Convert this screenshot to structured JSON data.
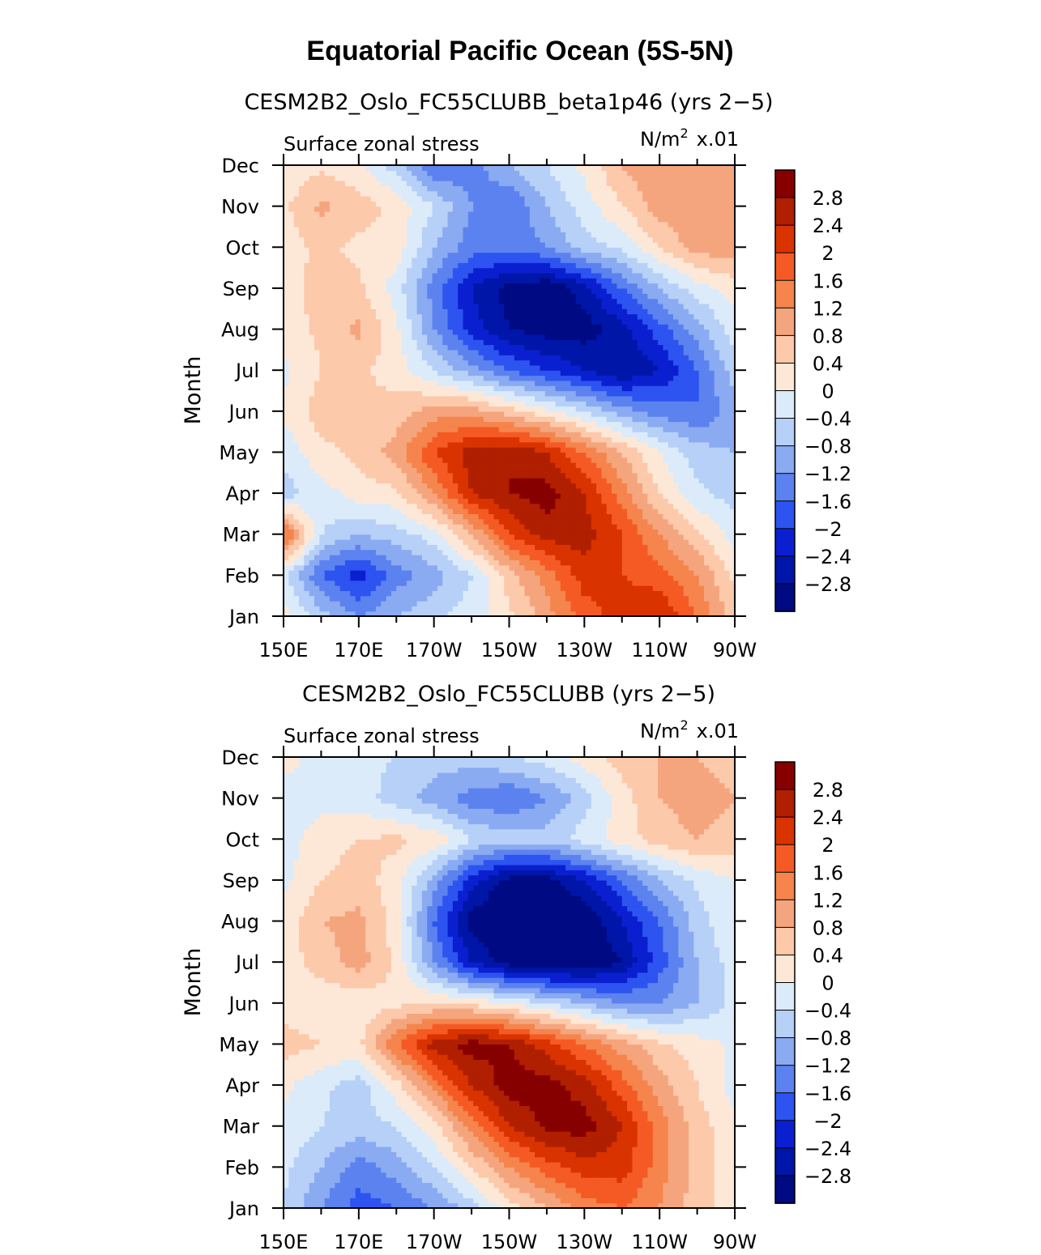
{
  "figure": {
    "title": "Equatorial Pacific Ocean (5S-5N)"
  },
  "colorbar": {
    "labels": [
      "2.8",
      "2.4",
      "2",
      "1.6",
      "1.2",
      "0.8",
      "0.4",
      "0",
      "−0.4",
      "−0.8",
      "−1.2",
      "−1.6",
      "−2",
      "−2.4",
      "−2.8"
    ],
    "colors": [
      "#870000",
      "#b01f00",
      "#d93300",
      "#f55a24",
      "#f5854d",
      "#f5a57d",
      "#fcc9ab",
      "#fde8d8",
      "#dcebfa",
      "#b6d0f7",
      "#8aaaf2",
      "#5c82ef",
      "#2d53f0",
      "#0a20d0",
      "#0016a8",
      "#000a82"
    ]
  },
  "chart_data": [
    {
      "type": "heatmap",
      "title": "CESM2B2_Oslo_FC55CLUBB_beta1p46 (yrs 2−5)",
      "left_label": "Surface zonal stress",
      "units_label": "N/m",
      "units_power": "2",
      "units_scale": "x.01",
      "ylabel": "Month",
      "xlabel": "",
      "x_ticks": [
        "150E",
        "170E",
        "170W",
        "150W",
        "130W",
        "110W",
        "90W"
      ],
      "y_ticks": [
        "Jan",
        "Feb",
        "Mar",
        "Apr",
        "May",
        "Jun",
        "Jul",
        "Aug",
        "Sep",
        "Oct",
        "Nov",
        "Dec"
      ],
      "x_lon": [
        150,
        160,
        170,
        180,
        190,
        200,
        210,
        220,
        230,
        240,
        250,
        260,
        270
      ],
      "levels": [
        -2.8,
        -2.4,
        -2,
        -1.6,
        -1.2,
        -0.8,
        -0.4,
        0,
        0.4,
        0.8,
        1.2,
        1.6,
        2,
        2.4,
        2.8
      ],
      "values": [
        [
          0.2,
          -0.6,
          -1.2,
          -0.8,
          -0.5,
          -0.2,
          0.3,
          1.0,
          1.8,
          2.2,
          2.4,
          1.6,
          0.6
        ],
        [
          -0.3,
          -1.6,
          -2.2,
          -1.4,
          -1.0,
          -0.4,
          0.6,
          1.4,
          2.2,
          2.0,
          1.8,
          1.2,
          0.3
        ],
        [
          1.8,
          -0.4,
          -0.8,
          -0.6,
          -0.2,
          0.8,
          2.0,
          2.6,
          2.6,
          2.0,
          1.2,
          0.5,
          -0.2
        ],
        [
          -0.6,
          -0.2,
          0.2,
          0.3,
          1.2,
          2.4,
          2.8,
          3.0,
          2.4,
          1.4,
          0.4,
          -0.3,
          -0.6
        ],
        [
          -0.3,
          0.3,
          0.5,
          1.0,
          2.0,
          2.6,
          2.8,
          2.4,
          1.6,
          0.8,
          0.0,
          -0.6,
          -0.8
        ],
        [
          0.1,
          0.6,
          0.4,
          0.6,
          1.0,
          1.0,
          0.6,
          0.1,
          -0.4,
          -1.0,
          -1.4,
          -1.6,
          -1.0
        ],
        [
          -0.1,
          0.4,
          0.5,
          0.2,
          -0.4,
          -1.0,
          -1.6,
          -2.0,
          -2.4,
          -2.8,
          -2.4,
          -1.6,
          -0.6
        ],
        [
          0.2,
          0.5,
          0.9,
          0.1,
          -1.2,
          -2.2,
          -2.8,
          -3.0,
          -3.0,
          -2.6,
          -1.8,
          -1.0,
          -0.2
        ],
        [
          0.3,
          0.5,
          0.5,
          -0.2,
          -1.4,
          -2.4,
          -3.0,
          -3.2,
          -2.6,
          -1.6,
          -0.8,
          -0.2,
          0.2
        ],
        [
          0.2,
          0.5,
          0.3,
          0.2,
          -0.8,
          -1.4,
          -1.4,
          -1.2,
          -0.6,
          -0.3,
          0.4,
          1.0,
          1.0
        ],
        [
          0.3,
          0.9,
          0.6,
          0.3,
          -0.4,
          -1.2,
          -1.6,
          -0.8,
          -0.2,
          0.4,
          1.0,
          1.1,
          1.0
        ],
        [
          0.1,
          0.3,
          0.1,
          -0.6,
          -1.6,
          -1.4,
          -0.8,
          -0.4,
          0.1,
          0.8,
          1.2,
          1.0,
          0.8
        ]
      ]
    },
    {
      "type": "heatmap",
      "title": "CESM2B2_Oslo_FC55CLUBB (yrs 2−5)",
      "left_label": "Surface zonal stress",
      "units_label": "N/m",
      "units_power": "2",
      "units_scale": "x.01",
      "ylabel": "Month",
      "xlabel": "",
      "x_ticks": [
        "150E",
        "170E",
        "170W",
        "150W",
        "130W",
        "110W",
        "90W"
      ],
      "y_ticks": [
        "Jan",
        "Feb",
        "Mar",
        "Apr",
        "May",
        "Jun",
        "Jul",
        "Aug",
        "Sep",
        "Oct",
        "Nov",
        "Dec"
      ],
      "x_lon": [
        150,
        160,
        170,
        180,
        190,
        200,
        210,
        220,
        230,
        240,
        250,
        260,
        270
      ],
      "levels": [
        -2.8,
        -2.4,
        -2,
        -1.6,
        -1.2,
        -0.8,
        -0.4,
        0,
        0.4,
        0.8,
        1.2,
        1.6,
        2,
        2.4,
        2.8
      ],
      "values": [
        [
          -0.4,
          -1.2,
          -1.8,
          -1.6,
          -1.2,
          -0.6,
          0.2,
          0.8,
          1.4,
          1.6,
          1.2,
          0.6,
          0.2
        ],
        [
          -0.3,
          -0.8,
          -1.4,
          -1.0,
          -0.4,
          0.4,
          1.2,
          1.8,
          2.2,
          2.2,
          1.4,
          0.6,
          0.2
        ],
        [
          -0.1,
          -0.4,
          -0.6,
          -0.4,
          0.2,
          1.4,
          2.4,
          2.9,
          3.0,
          2.4,
          1.4,
          0.6,
          0.1
        ],
        [
          0.1,
          -0.3,
          -0.6,
          0.2,
          1.4,
          2.4,
          3.0,
          3.0,
          2.6,
          1.8,
          1.0,
          0.4,
          -0.2
        ],
        [
          0.6,
          0.4,
          0.3,
          1.6,
          2.6,
          3.0,
          2.8,
          2.2,
          1.6,
          1.0,
          0.5,
          0.2,
          -0.1
        ],
        [
          0.2,
          0.1,
          0.1,
          0.3,
          0.4,
          0.3,
          0.0,
          -0.4,
          -0.8,
          -1.2,
          -1.2,
          -0.8,
          -0.3
        ],
        [
          0.2,
          0.6,
          1.0,
          0.3,
          -1.2,
          -2.4,
          -3.0,
          -3.2,
          -3.2,
          -2.8,
          -1.8,
          -0.8,
          -0.2
        ],
        [
          0.1,
          0.8,
          0.9,
          0.2,
          -1.6,
          -3.0,
          -3.4,
          -3.4,
          -3.2,
          -2.4,
          -1.6,
          -0.6,
          0.0
        ],
        [
          -0.1,
          0.4,
          0.6,
          0.2,
          -1.0,
          -2.2,
          -3.0,
          -3.0,
          -2.4,
          -1.6,
          -0.8,
          -0.3,
          0.0
        ],
        [
          -0.2,
          0.2,
          0.4,
          0.5,
          0.3,
          -0.4,
          -0.6,
          -0.6,
          -0.2,
          0.2,
          0.6,
          0.8,
          0.6
        ],
        [
          -0.3,
          -0.1,
          -0.2,
          -0.6,
          -1.0,
          -1.4,
          -1.6,
          -1.2,
          -0.6,
          0.2,
          0.8,
          1.0,
          0.8
        ],
        [
          0.2,
          -0.2,
          -0.3,
          -0.4,
          -0.6,
          -0.6,
          -0.4,
          -0.2,
          0.2,
          0.6,
          0.8,
          0.8,
          0.6
        ]
      ]
    }
  ]
}
